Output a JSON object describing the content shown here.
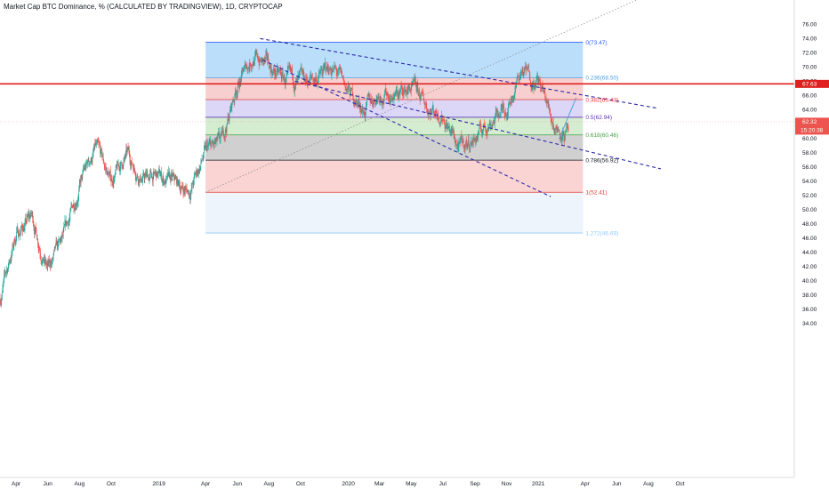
{
  "header": {
    "title": "Market Cap BTC Dominance, % (CALCULATED BY TRADINGVIEW), 1D, CRYPTOCAP"
  },
  "colors": {
    "up": "#26a69a",
    "down": "#ef5350",
    "trend_line": "#2a2aa8",
    "hline": "#e02020",
    "fib_line": "#4a9fe0"
  },
  "chart_data": {
    "type": "candlestick",
    "title": "Market Cap BTC Dominance, % (CALCULATED BY TRADINGVIEW), 1D, CRYPTOCAP",
    "symbol": "CRYPTOCAP",
    "interval": "1D",
    "ylim": [
      33,
      77
    ],
    "y_ticks": [
      "76.00",
      "74.00",
      "72.00",
      "70.00",
      "68.00",
      "66.00",
      "64.00",
      "62.00",
      "60.00",
      "58.00",
      "56.00",
      "54.00",
      "52.00",
      "50.00",
      "48.00",
      "46.00",
      "44.00",
      "42.00",
      "40.00",
      "38.00",
      "36.00",
      "34.00"
    ],
    "x_tick_labels": [
      "Apr",
      "Jun",
      "Aug",
      "Oct",
      "2019",
      "Apr",
      "Jun",
      "Aug",
      "Oct",
      "2020",
      "Mar",
      "May",
      "Jul",
      "Sep",
      "Nov",
      "2021",
      "Apr",
      "Jun",
      "Aug",
      "Oct"
    ],
    "price_series": {
      "months": [
        "2018-03",
        "2018-04",
        "2018-05",
        "2018-06",
        "2018-07",
        "2018-08",
        "2018-09",
        "2018-10",
        "2018-11",
        "2018-12",
        "2019-01",
        "2019-02",
        "2019-03",
        "2019-04",
        "2019-05",
        "2019-06",
        "2019-07",
        "2019-08",
        "2019-09",
        "2019-10",
        "2019-11",
        "2019-12",
        "2020-01",
        "2020-02",
        "2020-03",
        "2020-04",
        "2020-05",
        "2020-06",
        "2020-07",
        "2020-08",
        "2020-09",
        "2020-10",
        "2020-11",
        "2020-12",
        "2021-01",
        "2021-02",
        "2021-03"
      ],
      "values": [
        37.5,
        46.5,
        49.0,
        41.5,
        45.5,
        53.5,
        58.5,
        54.0,
        57.5,
        54.5,
        54.5,
        53.5,
        52.5,
        58.0,
        59.0,
        67.5,
        71.5,
        70.0,
        68.0,
        67.5,
        68.5,
        70.0,
        66.5,
        64.0,
        66.5,
        66.0,
        67.0,
        64.5,
        63.5,
        58.5,
        60.0,
        62.5,
        64.5,
        69.5,
        68.0,
        62.0,
        60.5
      ]
    },
    "fib_levels": [
      {
        "ratio": "0",
        "value": 73.47,
        "label": "0(73.47)",
        "color": "#2962ff"
      },
      {
        "ratio": "0.236",
        "value": 68.5,
        "label": "0.236(68.50)",
        "color": "#4a9fe0"
      },
      {
        "ratio": "0.382",
        "value": 65.43,
        "label": "0.382(65.43)",
        "color": "#e53935"
      },
      {
        "ratio": "0.5",
        "value": 62.94,
        "label": "0.5(62.94)",
        "color": "#5e35b1"
      },
      {
        "ratio": "0.618",
        "value": 60.46,
        "label": "0.618(60.46)",
        "color": "#43a047"
      },
      {
        "ratio": "0.786",
        "value": 56.92,
        "label": "0.786(56.92)",
        "color": "#131722"
      },
      {
        "ratio": "1",
        "value": 52.41,
        "label": "1(52.41)",
        "color": "#e53935"
      },
      {
        "ratio": "1.272",
        "value": 46.69,
        "label": "1.272(46.69)",
        "color": "#90caf9"
      }
    ],
    "fib_bands": [
      {
        "from": 73.47,
        "to": 68.5,
        "color": "#bbdefb"
      },
      {
        "from": 68.5,
        "to": 65.43,
        "color": "#f8cfcf"
      },
      {
        "from": 65.43,
        "to": 62.94,
        "color": "#dcd6f7"
      },
      {
        "from": 62.94,
        "to": 60.46,
        "color": "#d4ecd0"
      },
      {
        "from": 60.46,
        "to": 56.92,
        "color": "#d0d0d0"
      },
      {
        "from": 56.92,
        "to": 52.41,
        "color": "#fad3d3"
      },
      {
        "from": 52.41,
        "to": 46.69,
        "color": "#eef4fc"
      }
    ],
    "horizontal_line": {
      "value": 67.63,
      "label": "67.63"
    },
    "last_price": {
      "value": "62.32",
      "countdown": "15:20:38"
    },
    "trendlines": [
      {
        "points": [
          [
            "2019-07-15",
            74.0
          ],
          [
            "2021-08-20",
            64.2
          ]
        ],
        "style": "dashed"
      },
      {
        "points": [
          [
            "2019-07-20",
            71.0
          ],
          [
            "2021-01-25",
            51.8
          ]
        ],
        "style": "dashed"
      },
      {
        "points": [
          [
            "2019-09-20",
            68.0
          ],
          [
            "2021-08-25",
            55.7
          ]
        ],
        "style": "dashed"
      }
    ],
    "projection": {
      "points": [
        [
          "2021-02-10",
          59.9
        ],
        [
          "2021-03-15",
          65.7
        ]
      ]
    },
    "fib_anchor_line": {
      "points": [
        [
          "2019-04-01",
          52.4
        ],
        [
          "2021-01-08",
          73.47
        ]
      ]
    }
  }
}
